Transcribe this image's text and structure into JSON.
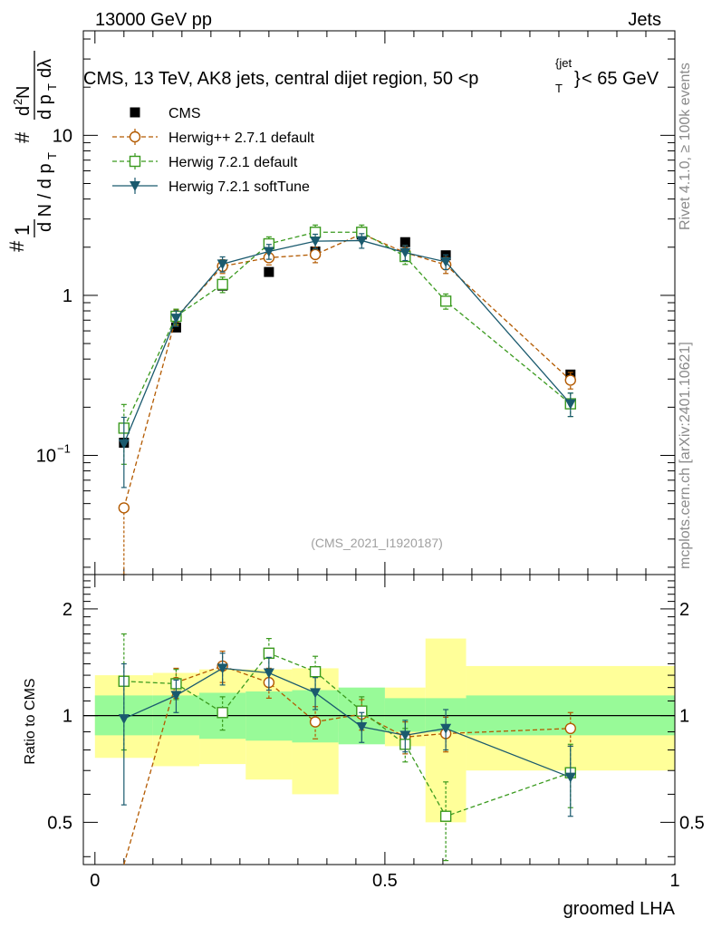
{
  "header": {
    "left": "13000 GeV pp",
    "right": "Jets",
    "title_main": "CMS, 13 TeV, AK8 jets, central dijet region, 50 <p",
    "title_sub_T": "T",
    "title_sup_jet": "{jet",
    "title_sup_close": "}",
    "title_tail": "< 65 GeV"
  },
  "side": {
    "rivet": "Rivet 4.1.0, ≥ 100k events",
    "mcplots": "mcplots.cern.ch [arXiv:2401.10621]"
  },
  "watermark": "(CMS_2021_I1920187)",
  "colors": {
    "cms": "#000000",
    "herwigpp": "#b35a00",
    "herwig721": "#3a9a1e",
    "softtune": "#1a5a6e",
    "band_inner": "#98fa98",
    "band_outer": "#ffff99"
  },
  "chart_data": [
    {
      "type": "scatter",
      "panel": "main",
      "ylabel": "# 1 / d N / d p_T # d^2N / d p_T dλ",
      "yscale": "log",
      "ylim": [
        0.018,
        45
      ],
      "xlim": [
        -0.02,
        1.0
      ],
      "y_ticks": [
        {
          "value": 0.1,
          "label": "10",
          "exp": "−1"
        },
        {
          "value": 1,
          "label": "1",
          "exp": ""
        },
        {
          "value": 10,
          "label": "10",
          "exp": ""
        }
      ],
      "legend": {
        "position": "top-left",
        "entries": [
          "CMS",
          "Herwig++ 2.7.1 default",
          "Herwig 7.2.1 default",
          "Herwig 7.2.1 softTune"
        ]
      },
      "series": [
        {
          "name": "CMS",
          "marker": "square-filled",
          "x": [
            0.05,
            0.14,
            0.22,
            0.3,
            0.38,
            0.46,
            0.535,
            0.605,
            0.82
          ],
          "y": [
            0.12,
            0.63,
            1.15,
            1.4,
            1.88,
            2.4,
            2.15,
            1.78,
            0.32
          ],
          "xerr": [
            0.05,
            0.04,
            0.04,
            0.04,
            0.04,
            0.04,
            0.035,
            0.035,
            0.18
          ]
        },
        {
          "name": "Herwig++ 2.7.1 default",
          "marker": "circle-open",
          "line": "dashed",
          "x": [
            0.05,
            0.14,
            0.22,
            0.3,
            0.38,
            0.46,
            0.535,
            0.605,
            0.82
          ],
          "y": [
            0.047,
            0.73,
            1.52,
            1.72,
            1.8,
            2.42,
            1.85,
            1.55,
            0.295
          ],
          "yerr_up": [
            0.0,
            0.08,
            0.15,
            0.17,
            0.2,
            0.25,
            0.2,
            0.18,
            0.035
          ],
          "yerr_down": [
            0.03,
            0.08,
            0.15,
            0.17,
            0.2,
            0.25,
            0.2,
            0.18,
            0.035
          ]
        },
        {
          "name": "Herwig 7.2.1 default",
          "marker": "square-open",
          "line": "dashed",
          "x": [
            0.05,
            0.14,
            0.22,
            0.3,
            0.38,
            0.46,
            0.535,
            0.605,
            0.82
          ],
          "y": [
            0.148,
            0.74,
            1.17,
            2.1,
            2.48,
            2.48,
            1.75,
            0.92,
            0.21
          ],
          "yerr_up": [
            0.06,
            0.08,
            0.13,
            0.22,
            0.27,
            0.27,
            0.19,
            0.1,
            0.035
          ],
          "yerr_down": [
            0.06,
            0.08,
            0.13,
            0.22,
            0.27,
            0.27,
            0.19,
            0.1,
            0.035
          ]
        },
        {
          "name": "Herwig 7.2.1 softTune",
          "marker": "triangle-down-filled",
          "line": "solid",
          "x": [
            0.05,
            0.14,
            0.22,
            0.3,
            0.38,
            0.46,
            0.535,
            0.605,
            0.82
          ],
          "y": [
            0.118,
            0.72,
            1.57,
            1.88,
            2.18,
            2.2,
            1.85,
            1.62,
            0.21
          ],
          "yerr_up": [
            0.055,
            0.08,
            0.17,
            0.2,
            0.23,
            0.23,
            0.2,
            0.17,
            0.035
          ],
          "yerr_down": [
            0.055,
            0.08,
            0.17,
            0.2,
            0.23,
            0.23,
            0.2,
            0.17,
            0.035
          ]
        }
      ]
    },
    {
      "type": "scatter",
      "panel": "ratio",
      "ylabel": "Ratio to CMS",
      "xlabel": "groomed LHA",
      "yscale": "log",
      "ylim": [
        0.38,
        2.5
      ],
      "xlim": [
        -0.02,
        1.0
      ],
      "y_ticks": [
        {
          "value": 0.5,
          "label": "0.5"
        },
        {
          "value": 1,
          "label": "1"
        },
        {
          "value": 2,
          "label": "2"
        }
      ],
      "x_ticks": [
        {
          "value": 0,
          "label": "0"
        },
        {
          "value": 0.5,
          "label": "0.5"
        },
        {
          "value": 1,
          "label": "1"
        }
      ],
      "bands": {
        "edges": [
          0,
          0.1,
          0.18,
          0.26,
          0.34,
          0.42,
          0.5,
          0.57,
          0.64,
          1.0
        ],
        "inner_lo": [
          0.88,
          0.88,
          0.86,
          0.85,
          0.84,
          0.83,
          0.9,
          0.9,
          0.88
        ],
        "inner_hi": [
          1.14,
          1.14,
          1.16,
          1.17,
          1.18,
          1.2,
          1.12,
          1.12,
          1.14
        ],
        "outer_lo": [
          0.76,
          0.72,
          0.73,
          0.66,
          0.6,
          0.9,
          0.82,
          0.5,
          0.7
        ],
        "outer_hi": [
          1.3,
          1.32,
          1.35,
          1.35,
          1.36,
          1.1,
          1.2,
          1.65,
          1.38
        ]
      },
      "series": [
        {
          "name": "Herwig++ 2.7.1 default",
          "marker": "circle-open",
          "line": "dashed",
          "x": [
            0.05,
            0.14,
            0.22,
            0.3,
            0.38,
            0.46,
            0.535,
            0.605,
            0.82
          ],
          "y": [
            0.39,
            1.24,
            1.38,
            1.24,
            0.96,
            1.01,
            0.87,
            0.89,
            0.92
          ],
          "yerr": [
            0.0,
            0.12,
            0.14,
            0.12,
            0.1,
            0.1,
            0.09,
            0.1,
            0.1
          ]
        },
        {
          "name": "Herwig 7.2.1 default",
          "marker": "square-open",
          "line": "dashed",
          "x": [
            0.05,
            0.14,
            0.22,
            0.3,
            0.38,
            0.46,
            0.535,
            0.605,
            0.82
          ],
          "y": [
            1.25,
            1.23,
            1.02,
            1.5,
            1.33,
            1.03,
            0.83,
            0.52,
            0.69
          ],
          "yerr": [
            0.45,
            0.12,
            0.11,
            0.15,
            0.14,
            0.1,
            0.09,
            0.13,
            0.14
          ]
        },
        {
          "name": "Herwig 7.2.1 softTune",
          "marker": "triangle-down-filled",
          "line": "solid",
          "x": [
            0.05,
            0.14,
            0.22,
            0.3,
            0.38,
            0.46,
            0.535,
            0.605,
            0.82
          ],
          "y": [
            0.98,
            1.14,
            1.36,
            1.32,
            1.16,
            0.93,
            0.88,
            0.92,
            0.67
          ],
          "yerr": [
            0.42,
            0.12,
            0.14,
            0.14,
            0.12,
            0.09,
            0.09,
            0.12,
            0.15
          ]
        }
      ]
    }
  ]
}
